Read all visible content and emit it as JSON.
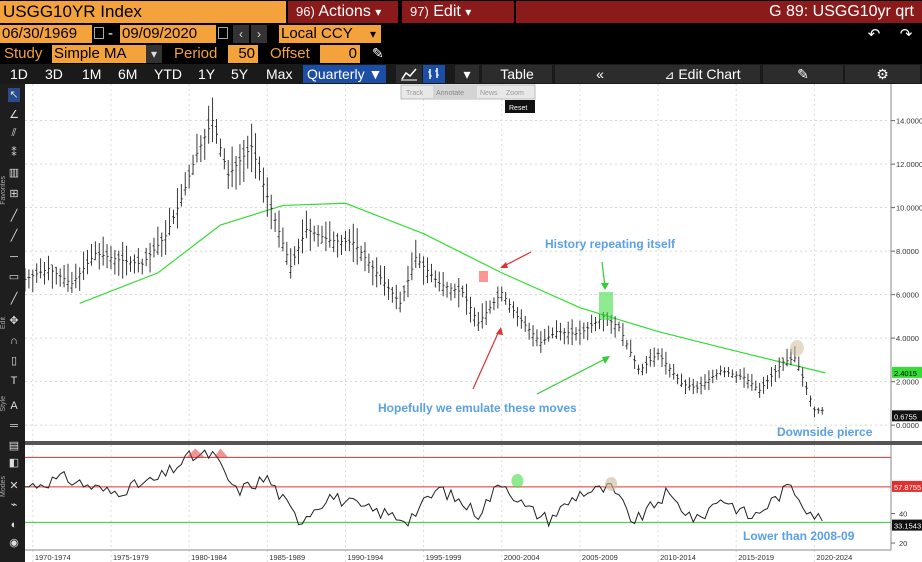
{
  "header": {
    "ticker": "USGG10YR Index",
    "actions_num": "96)",
    "actions_label": "Actions",
    "actions_caret": "▾",
    "edit_num": "97)",
    "edit_label": "Edit",
    "edit_caret": "▾",
    "title_right": "G 89: USGG10yr qrt"
  },
  "range": {
    "start_date": "06/30/1969",
    "dash": "-",
    "end_date": "09/09/2020",
    "currency": "Local CCY"
  },
  "study": {
    "label": "Study",
    "value": "Simple MA",
    "period_label": "Period",
    "period_value": "50",
    "offset_label": "Offset",
    "offset_value": "0"
  },
  "toolbar": {
    "timeframes": [
      "1D",
      "3D",
      "1M",
      "6M",
      "YTD",
      "1Y",
      "5Y",
      "Max"
    ],
    "frequency": "Quarterly ▼",
    "table_label": "Table",
    "edit_chart_label": "Edit Chart",
    "dropdown_caret": "▾"
  },
  "chart_tools": {
    "track": "Track",
    "annotate": "Annotate",
    "news": "News",
    "zoom": "Zoom",
    "reset": "Reset"
  },
  "sidebar_labels": {
    "favorites": "Favorites",
    "edit": "Edit",
    "style": "Style",
    "modes": "Modes"
  },
  "colors": {
    "accent_orange": "#f4a23c",
    "header_red": "#8b1a1a",
    "ma_line": "#33dd33",
    "annotation_blue": "#5aa0e6",
    "arrow_red": "#e03030",
    "arrow_green": "#33cc33",
    "selected_blue": "#1d4ea6"
  },
  "chart_data": [
    {
      "type": "line",
      "panel": "price",
      "series": [
        {
          "name": "USGG10YR Index",
          "style": "ohlc bars",
          "x": [
            1969.5,
            1971,
            1972.5,
            1974,
            1975.5,
            1977,
            1978.5,
            1979.5,
            1980.5,
            1981.5,
            1982.5,
            1984,
            1985,
            1986.5,
            1987.5,
            1989,
            1990.5,
            1992,
            1993.5,
            1994.5,
            1996,
            1997.5,
            1998.5,
            2000,
            2001,
            2002.5,
            2003.5,
            2005,
            2006.5,
            2007.5,
            2008.8,
            2010,
            2011.5,
            2012.5,
            2014,
            2015.5,
            2016.5,
            2018,
            2018.8,
            2020,
            2020.7
          ],
          "values": [
            6.7,
            7.2,
            6.5,
            7.9,
            7.6,
            7.4,
            8.7,
            10.4,
            12.5,
            14.0,
            11.5,
            12.8,
            10.5,
            7.3,
            9.0,
            8.5,
            8.4,
            7.0,
            5.6,
            7.7,
            6.5,
            6.1,
            4.7,
            6.1,
            5.0,
            3.8,
            4.3,
            4.2,
            5.0,
            4.5,
            2.5,
            3.3,
            1.9,
            1.7,
            2.5,
            2.2,
            1.6,
            2.9,
            3.1,
            0.7,
            0.68
          ],
          "last_value": "0.6755"
        },
        {
          "name": "Simple MA 50",
          "x": [
            1973,
            1978,
            1982,
            1986,
            1990,
            1995,
            2000,
            2005,
            2010,
            2015,
            2020.7
          ],
          "values": [
            5.6,
            7.0,
            9.2,
            10.1,
            10.2,
            8.8,
            7.0,
            5.4,
            4.3,
            3.4,
            2.4015
          ],
          "last_value": "2.4015"
        }
      ],
      "yticks": [
        "14.0000",
        "12.0000",
        "10.0000",
        "8.0000",
        "6.0000",
        "4.0000",
        "2.0000",
        "0.0000"
      ],
      "ylim": [
        -0.5,
        15.5
      ],
      "annotations": [
        "History repeating itself",
        "Hopefully we emulate these moves",
        "Downside pierce"
      ]
    },
    {
      "type": "line",
      "panel": "rsi",
      "series": [
        {
          "name": "RSI",
          "x": [
            1969.5,
            1972,
            1975,
            1978,
            1980,
            1981.5,
            1983,
            1985,
            1987,
            1989,
            1991,
            1994,
            1996,
            1998.5,
            2000,
            2001.5,
            2003,
            2005,
            2007,
            2008.5,
            2010.5,
            2012.5,
            2014,
            2016,
            2018.5,
            2019.5,
            2020.7
          ],
          "values": [
            58,
            64,
            54,
            63,
            78,
            80,
            55,
            64,
            35,
            52,
            44,
            36,
            57,
            40,
            62,
            44,
            36,
            54,
            57,
            34,
            53,
            35,
            51,
            37,
            59,
            44,
            33.1543
          ]
        }
      ],
      "levels": [
        78,
        58,
        34
      ],
      "yticks": [
        "40",
        "20"
      ],
      "ylim": [
        18,
        85
      ],
      "level_value_label": "57.8755",
      "last_value": "33.1543",
      "annotations": [
        "Lower than 2008-09"
      ]
    }
  ],
  "x_axis": {
    "labels": [
      "1970-1974",
      "1975-1979",
      "1980-1984",
      "1985-1989",
      "1990-1994",
      "1995-1999",
      "2000-2004",
      "2005-2009",
      "2010-2014",
      "2015-2019",
      "2020-2024"
    ]
  }
}
